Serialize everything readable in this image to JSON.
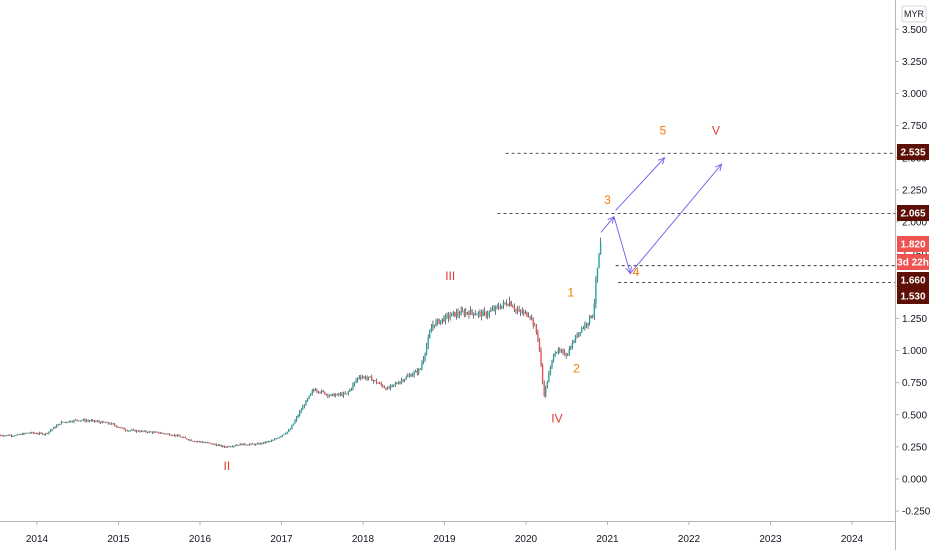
{
  "chart_data": {
    "type": "candlestick",
    "currency": "MYR",
    "ylim": [
      -0.35,
      3.65
    ],
    "y_ticks": [
      "-0.250",
      "0.000",
      "0.250",
      "0.500",
      "0.750",
      "1.000",
      "1.250",
      "1.500",
      "1.750",
      "2.000",
      "2.250",
      "2.500",
      "2.750",
      "3.000",
      "3.250",
      "3.500"
    ],
    "y_tick_values": [
      -0.25,
      0.0,
      0.25,
      0.5,
      0.75,
      1.0,
      1.25,
      1.5,
      1.75,
      2.0,
      2.25,
      2.5,
      2.75,
      3.0,
      3.25,
      3.5
    ],
    "x_range": [
      2013.55,
      2025.0
    ],
    "x_ticks": [
      "2014",
      "2015",
      "2016",
      "2017",
      "2018",
      "2019",
      "2020",
      "2021",
      "2022",
      "2023",
      "2024"
    ],
    "x_tick_values": [
      2014,
      2015,
      2016,
      2017,
      2018,
      2019,
      2020,
      2021,
      2022,
      2023,
      2024
    ],
    "price_series": [
      [
        2013.55,
        0.34
      ],
      [
        2013.75,
        0.34
      ],
      [
        2013.9,
        0.36
      ],
      [
        2014.1,
        0.35
      ],
      [
        2014.3,
        0.44
      ],
      [
        2014.5,
        0.46
      ],
      [
        2014.7,
        0.45
      ],
      [
        2014.9,
        0.43
      ],
      [
        2015.1,
        0.38
      ],
      [
        2015.3,
        0.37
      ],
      [
        2015.5,
        0.36
      ],
      [
        2015.7,
        0.34
      ],
      [
        2015.9,
        0.3
      ],
      [
        2016.1,
        0.28
      ],
      [
        2016.3,
        0.25
      ],
      [
        2016.5,
        0.27
      ],
      [
        2016.7,
        0.27
      ],
      [
        2016.9,
        0.3
      ],
      [
        2017.1,
        0.38
      ],
      [
        2017.25,
        0.55
      ],
      [
        2017.4,
        0.7
      ],
      [
        2017.6,
        0.65
      ],
      [
        2017.8,
        0.66
      ],
      [
        2017.95,
        0.8
      ],
      [
        2018.1,
        0.78
      ],
      [
        2018.3,
        0.7
      ],
      [
        2018.5,
        0.78
      ],
      [
        2018.7,
        0.85
      ],
      [
        2018.85,
        1.2
      ],
      [
        2019.0,
        1.25
      ],
      [
        2019.1,
        1.28
      ],
      [
        2019.3,
        1.3
      ],
      [
        2019.5,
        1.28
      ],
      [
        2019.7,
        1.35
      ],
      [
        2019.8,
        1.38
      ],
      [
        2019.9,
        1.3
      ],
      [
        2020.05,
        1.28
      ],
      [
        2020.15,
        1.1
      ],
      [
        2020.22,
        0.65
      ],
      [
        2020.35,
        1.0
      ],
      [
        2020.5,
        0.97
      ],
      [
        2020.65,
        1.15
      ],
      [
        2020.75,
        1.22
      ],
      [
        2020.83,
        1.3
      ],
      [
        2020.85,
        1.48
      ],
      [
        2020.88,
        1.65
      ],
      [
        2020.92,
        1.85
      ]
    ],
    "horizontal_levels": [
      {
        "value": 2.535,
        "label": "2.535",
        "style": "dashed"
      },
      {
        "value": 2.065,
        "label": "2.065",
        "style": "dashed"
      },
      {
        "value": 1.66,
        "label": "1.660",
        "style": "dashed"
      },
      {
        "value": 1.53,
        "label": "1.530",
        "style": "dashed"
      }
    ],
    "price_badges": [
      {
        "value": 2.535,
        "label": "2.535",
        "color": "#5d0f06"
      },
      {
        "value": 2.065,
        "label": "2.065",
        "color": "#5d0f06"
      },
      {
        "value": 1.82,
        "label": "1.820",
        "color": "#ef5350"
      },
      {
        "value": 1.71,
        "label": "3d 22h",
        "color": "#ef5350"
      },
      {
        "value": 1.66,
        "label": "1.660",
        "color": "#5d0f06"
      },
      {
        "value": 1.53,
        "label": "1.530",
        "color": "#5d0f06"
      }
    ],
    "wave_labels": [
      {
        "text": "II",
        "x": 2016.33,
        "y": 0.07,
        "color": "#e53935"
      },
      {
        "text": "III",
        "x": 2019.07,
        "y": 1.55,
        "color": "#e53935"
      },
      {
        "text": "IV",
        "x": 2020.38,
        "y": 0.44,
        "color": "#e53935"
      },
      {
        "text": "1",
        "x": 2020.55,
        "y": 1.42,
        "color": "#f57c00"
      },
      {
        "text": "2",
        "x": 2020.62,
        "y": 0.83,
        "color": "#f57c00"
      },
      {
        "text": "3",
        "x": 2021.0,
        "y": 2.14,
        "color": "#f57c00"
      },
      {
        "text": "4",
        "x": 2021.35,
        "y": 1.58,
        "color": "#f57c00"
      },
      {
        "text": "5",
        "x": 2021.68,
        "y": 2.68,
        "color": "#f57c00"
      },
      {
        "text": "V",
        "x": 2022.33,
        "y": 2.68,
        "color": "#e53935"
      }
    ],
    "projection_paths": [
      [
        [
          2020.92,
          1.92
        ],
        [
          2021.08,
          2.04
        ],
        [
          2021.28,
          1.6
        ],
        [
          2022.4,
          2.45
        ]
      ],
      [
        [
          2021.1,
          2.09
        ],
        [
          2021.7,
          2.5
        ]
      ]
    ]
  }
}
